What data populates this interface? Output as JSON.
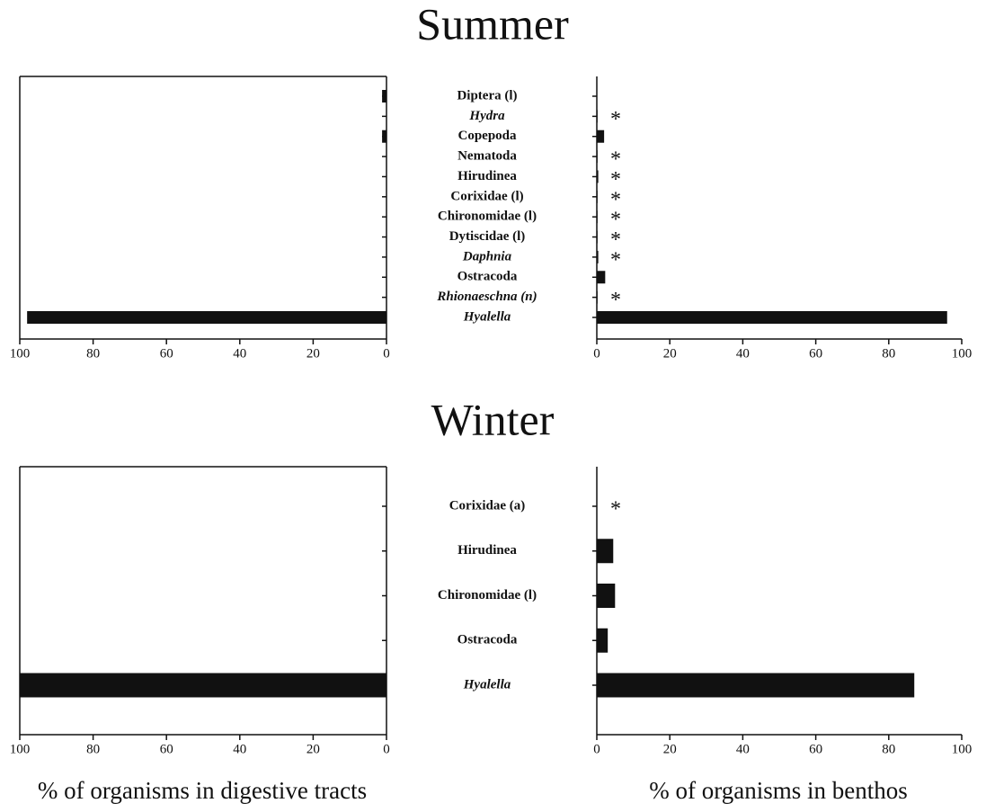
{
  "chart_data": [
    {
      "type": "bar",
      "title": "Summer",
      "categories": [
        "Diptera (l)",
        "Hydra",
        "Copepoda",
        "Nematoda",
        "Hirudinea",
        "Corixidae (l)",
        "Chironomidae (l)",
        "Dytiscidae (l)",
        "Daphnia",
        "Ostracoda",
        "Rhionaeschna (n)",
        "Hyalella"
      ],
      "italic": [
        false,
        true,
        false,
        false,
        false,
        false,
        false,
        false,
        true,
        false,
        true,
        true
      ],
      "markers": [
        null,
        "*",
        null,
        "*",
        "*",
        "*",
        "*",
        "*",
        "*",
        null,
        "*",
        null
      ],
      "series": [
        {
          "name": "% of organisms in digestive tracts",
          "color": "#111111",
          "reversed": true,
          "values": [
            1.2,
            0,
            1.2,
            0,
            0,
            0,
            0,
            0,
            0,
            0,
            0,
            98
          ]
        },
        {
          "name": "% of organisms in benthos",
          "color": "#111111",
          "reversed": false,
          "values": [
            0,
            0.2,
            2,
            0.2,
            0.4,
            0.2,
            0.2,
            0.2,
            0.4,
            2.3,
            0.2,
            96
          ]
        }
      ],
      "xlim": [
        0,
        100
      ],
      "xticks": [
        0,
        20,
        40,
        60,
        80,
        100
      ]
    },
    {
      "type": "bar",
      "title": "Winter",
      "categories": [
        "Corixidae (a)",
        "Hirudinea",
        "Chironomidae (l)",
        "Ostracoda",
        "Hyalella"
      ],
      "italic": [
        false,
        false,
        false,
        false,
        true
      ],
      "markers": [
        "*",
        null,
        null,
        null,
        null
      ],
      "series": [
        {
          "color": "#111111",
          "reversed": true,
          "values": [
            0,
            0,
            0,
            0,
            100
          ]
        },
        {
          "color": "#111111",
          "reversed": false,
          "values": [
            0,
            4.5,
            5,
            3,
            87
          ]
        }
      ],
      "xlim": [
        0,
        100
      ],
      "xticks": [
        0,
        20,
        40,
        60,
        80,
        100
      ]
    }
  ]
}
